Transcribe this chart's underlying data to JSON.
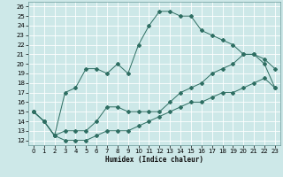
{
  "xlabel": "Humidex (Indice chaleur)",
  "bg_color": "#cde8e8",
  "grid_color": "#ffffff",
  "line_color": "#2e6e62",
  "xlim": [
    -0.5,
    23.5
  ],
  "ylim": [
    11.5,
    26.5
  ],
  "xticks": [
    0,
    1,
    2,
    3,
    4,
    5,
    6,
    7,
    8,
    9,
    10,
    11,
    12,
    13,
    14,
    15,
    16,
    17,
    18,
    19,
    20,
    21,
    22,
    23
  ],
  "yticks": [
    12,
    13,
    14,
    15,
    16,
    17,
    18,
    19,
    20,
    21,
    22,
    23,
    24,
    25,
    26
  ],
  "curve_main_x": [
    0,
    1,
    2,
    3,
    4,
    5,
    6,
    7,
    8,
    9,
    10,
    11,
    12,
    13,
    14,
    15,
    16,
    17,
    18,
    19,
    20,
    21,
    22,
    23
  ],
  "curve_main_y": [
    15,
    14,
    12.5,
    17,
    17.5,
    19.5,
    19.5,
    19,
    20,
    19,
    22,
    24,
    25.5,
    25.5,
    25,
    25,
    23.5,
    23,
    22.5,
    22,
    21,
    21,
    20.5,
    19.5
  ],
  "curve_mid_x": [
    0,
    1,
    2,
    3,
    4,
    5,
    6,
    7,
    8,
    9,
    10,
    11,
    12,
    13,
    14,
    15,
    16,
    17,
    18,
    19,
    20,
    21,
    22,
    23
  ],
  "curve_mid_y": [
    15,
    14,
    12.5,
    13,
    13,
    13,
    14,
    15.5,
    15.5,
    15,
    15,
    15,
    15,
    16,
    17,
    17.5,
    18,
    19,
    19.5,
    20,
    21,
    21,
    20,
    17.5
  ],
  "curve_low_x": [
    0,
    1,
    2,
    3,
    4,
    5,
    6,
    7,
    8,
    9,
    10,
    11,
    12,
    13,
    14,
    15,
    16,
    17,
    18,
    19,
    20,
    21,
    22,
    23
  ],
  "curve_low_y": [
    15,
    14,
    12.5,
    12,
    12,
    12,
    12.5,
    13,
    13,
    13,
    13.5,
    14,
    14.5,
    15,
    15.5,
    16,
    16,
    16.5,
    17,
    17,
    17.5,
    18,
    18.5,
    17.5
  ]
}
